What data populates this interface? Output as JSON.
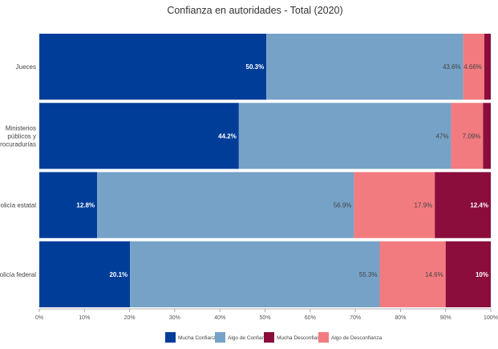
{
  "chart_data": {
    "type": "bar",
    "orientation": "horizontal",
    "stacked": "percent",
    "title": "Confianza en autoridades - Total (2020)",
    "xlabel": "",
    "ylabel": "",
    "xlim": [
      0,
      100
    ],
    "grid": false,
    "legend_position": "bottom",
    "categories": [
      [
        "Jueces"
      ],
      [
        "Ministerios",
        "públicos y",
        "procuradurías"
      ],
      [
        "Policía estatal"
      ],
      [
        "Policía federal"
      ]
    ],
    "x_ticks": [
      "0%",
      "10%",
      "20%",
      "30%",
      "40%",
      "50%",
      "60%",
      "70%",
      "80%",
      "90%",
      "100%"
    ],
    "series": [
      {
        "name": "Mucha Confianza",
        "color": "#003d99",
        "label_color": "#ffffff",
        "values": [
          50.3,
          44.2,
          12.8,
          20.1
        ],
        "labels": [
          "50.3%",
          "44.2%",
          "12.8%",
          "20.1%"
        ]
      },
      {
        "name": "Algo de Confianza",
        "color": "#76a2c8",
        "label_color": "#444444",
        "values": [
          43.6,
          47,
          56.9,
          55.3
        ],
        "labels": [
          "43.6%",
          "47%",
          "56.9%",
          "55.3%"
        ]
      },
      {
        "name": "Algo de Desconfianza",
        "color": "#f27b80",
        "label_color": "#444444",
        "values": [
          4.66,
          7.09,
          17.9,
          14.6
        ],
        "labels": [
          "4.66%",
          "7.09%",
          "17.9%",
          "14.6%"
        ]
      },
      {
        "name": "Mucha Desconfianza",
        "color": "#8a0d3c",
        "label_color": "#ffffff",
        "values": [
          1.44,
          1.71,
          12.4,
          10
        ],
        "labels": [
          "",
          "",
          "12.4%",
          "10%"
        ]
      }
    ],
    "legend_order": [
      "Mucha Confianza",
      "Algo de Confianza",
      "Mucha Desconfianza",
      "Algo de Desconfianza"
    ]
  }
}
